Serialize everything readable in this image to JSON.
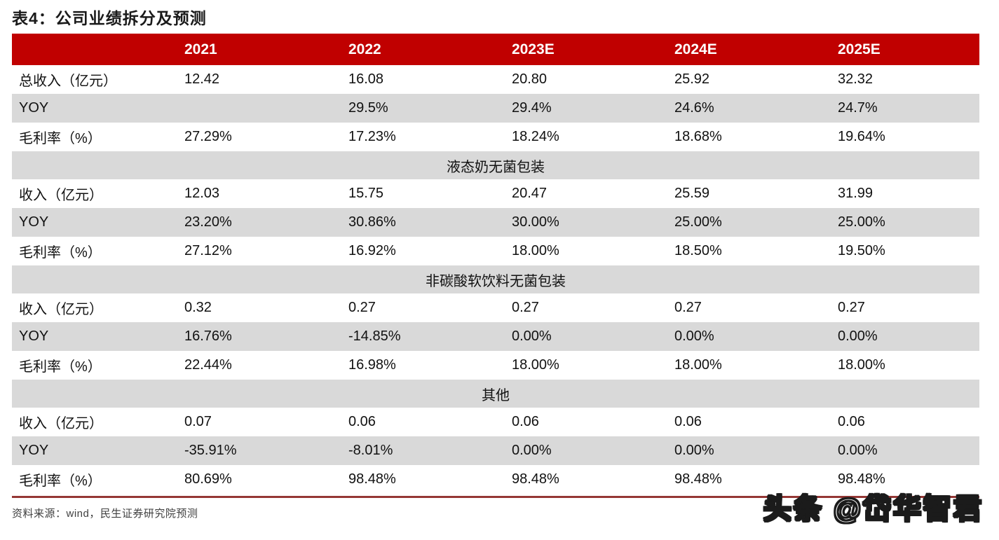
{
  "title": "表4：公司业绩拆分及预测",
  "table": {
    "columns": [
      "",
      "2021",
      "2022",
      "2023E",
      "2024E",
      "2025E"
    ],
    "rows": [
      {
        "type": "data",
        "shaded": false,
        "label": "总收入（亿元）",
        "values": [
          "12.42",
          "16.08",
          "20.80",
          "25.92",
          "32.32"
        ]
      },
      {
        "type": "data",
        "shaded": true,
        "label": "YOY",
        "values": [
          "",
          "29.5%",
          "29.4%",
          "24.6%",
          "24.7%"
        ]
      },
      {
        "type": "data",
        "shaded": false,
        "label": "毛利率（%）",
        "values": [
          "27.29%",
          "17.23%",
          "18.24%",
          "18.68%",
          "19.64%"
        ]
      },
      {
        "type": "section",
        "label": "液态奶无菌包装"
      },
      {
        "type": "data",
        "shaded": false,
        "label": "收入（亿元）",
        "values": [
          "12.03",
          "15.75",
          "20.47",
          "25.59",
          "31.99"
        ]
      },
      {
        "type": "data",
        "shaded": true,
        "label": "YOY",
        "values": [
          "23.20%",
          "30.86%",
          "30.00%",
          "25.00%",
          "25.00%"
        ]
      },
      {
        "type": "data",
        "shaded": false,
        "label": "毛利率（%）",
        "values": [
          "27.12%",
          "16.92%",
          "18.00%",
          "18.50%",
          "19.50%"
        ]
      },
      {
        "type": "section",
        "label": "非碳酸软饮料无菌包装"
      },
      {
        "type": "data",
        "shaded": false,
        "label": "收入（亿元）",
        "values": [
          "0.32",
          "0.27",
          "0.27",
          "0.27",
          "0.27"
        ]
      },
      {
        "type": "data",
        "shaded": true,
        "label": "YOY",
        "values": [
          "16.76%",
          "-14.85%",
          "0.00%",
          "0.00%",
          "0.00%"
        ]
      },
      {
        "type": "data",
        "shaded": false,
        "label": "毛利率（%）",
        "values": [
          "22.44%",
          "16.98%",
          "18.00%",
          "18.00%",
          "18.00%"
        ]
      },
      {
        "type": "section",
        "label": "其他"
      },
      {
        "type": "data",
        "shaded": false,
        "label": "收入（亿元）",
        "values": [
          "0.07",
          "0.06",
          "0.06",
          "0.06",
          "0.06"
        ]
      },
      {
        "type": "data",
        "shaded": true,
        "label": "YOY",
        "values": [
          "-35.91%",
          "-8.01%",
          "0.00%",
          "0.00%",
          "0.00%"
        ]
      },
      {
        "type": "data",
        "shaded": false,
        "label": "毛利率（%）",
        "values": [
          "80.69%",
          "98.48%",
          "98.48%",
          "98.48%",
          "98.48%"
        ]
      }
    ]
  },
  "footer": {
    "source": "资料来源：wind，民生证券研究院预测"
  },
  "watermark": {
    "text": "头条 @岱华智君"
  },
  "colors": {
    "header_bg": "#c00000",
    "header_text": "#ffffff",
    "shaded_row_bg": "#d9d9d9",
    "divider": "#953735",
    "title_text": "#1a1a1a",
    "footer_text": "#3f3f3f"
  }
}
